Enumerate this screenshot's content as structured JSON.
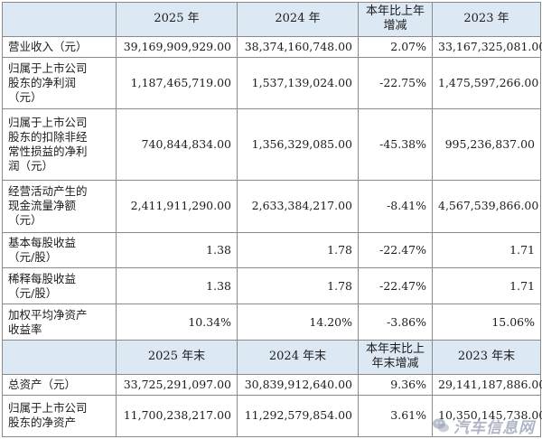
{
  "header1": {
    "label": "",
    "c1": "2025 年",
    "c2": "2024 年",
    "c3": "本年比上年\n增减",
    "c4": "2023 年"
  },
  "rows1": [
    {
      "label": "营业收入（元）",
      "c1": "39,169,909,929.00",
      "c2": "38,374,160,748.00",
      "c3": "2.07%",
      "c4": "33,167,325,081.00"
    },
    {
      "label": "归属于上市公司\n股东的净利润\n（元）",
      "c1": "1,187,465,719.00",
      "c2": "1,537,139,024.00",
      "c3": "-22.75%",
      "c4": "1,475,597,266.00"
    },
    {
      "label": "归属于上市公司\n股东的扣除非经\n常性损益的净利\n润（元）",
      "c1": "740,844,834.00",
      "c2": "1,356,329,085.00",
      "c3": "-45.38%",
      "c4": "995,236,837.00"
    },
    {
      "label": "经营活动产生的\n现金流量净额\n（元）",
      "c1": "2,411,911,290.00",
      "c2": "2,633,384,217.00",
      "c3": "-8.41%",
      "c4": "4,567,539,866.00"
    },
    {
      "label": "基本每股收益\n（元/股）",
      "c1": "1.38",
      "c2": "1.78",
      "c3": "-22.47%",
      "c4": "1.71"
    },
    {
      "label": "稀释每股收益\n（元/股）",
      "c1": "1.38",
      "c2": "1.78",
      "c3": "-22.47%",
      "c4": "1.71"
    },
    {
      "label": "加权平均净资产\n收益率",
      "c1": "10.34%",
      "c2": "14.20%",
      "c3": "-3.86%",
      "c4": "15.06%"
    }
  ],
  "header2": {
    "label": "",
    "c1": "2025 年末",
    "c2": "2024 年末",
    "c3": "本年末比上\n年末增减",
    "c4": "2023 年末"
  },
  "rows2": [
    {
      "label": "总资产（元）",
      "c1": "33,725,291,097.00",
      "c2": "30,839,912,640.00",
      "c3": "9.36%",
      "c4": "29,141,187,886.00"
    },
    {
      "label": "归属于上市公司\n股东的净资产",
      "c1": "11,700,238,217.00",
      "c2": "11,292,579,854.00",
      "c3": "3.61%",
      "c4": "10,350,145,738.00"
    }
  ],
  "watermark": {
    "text": "汽车信息网",
    "icon": "wechat-icon"
  }
}
